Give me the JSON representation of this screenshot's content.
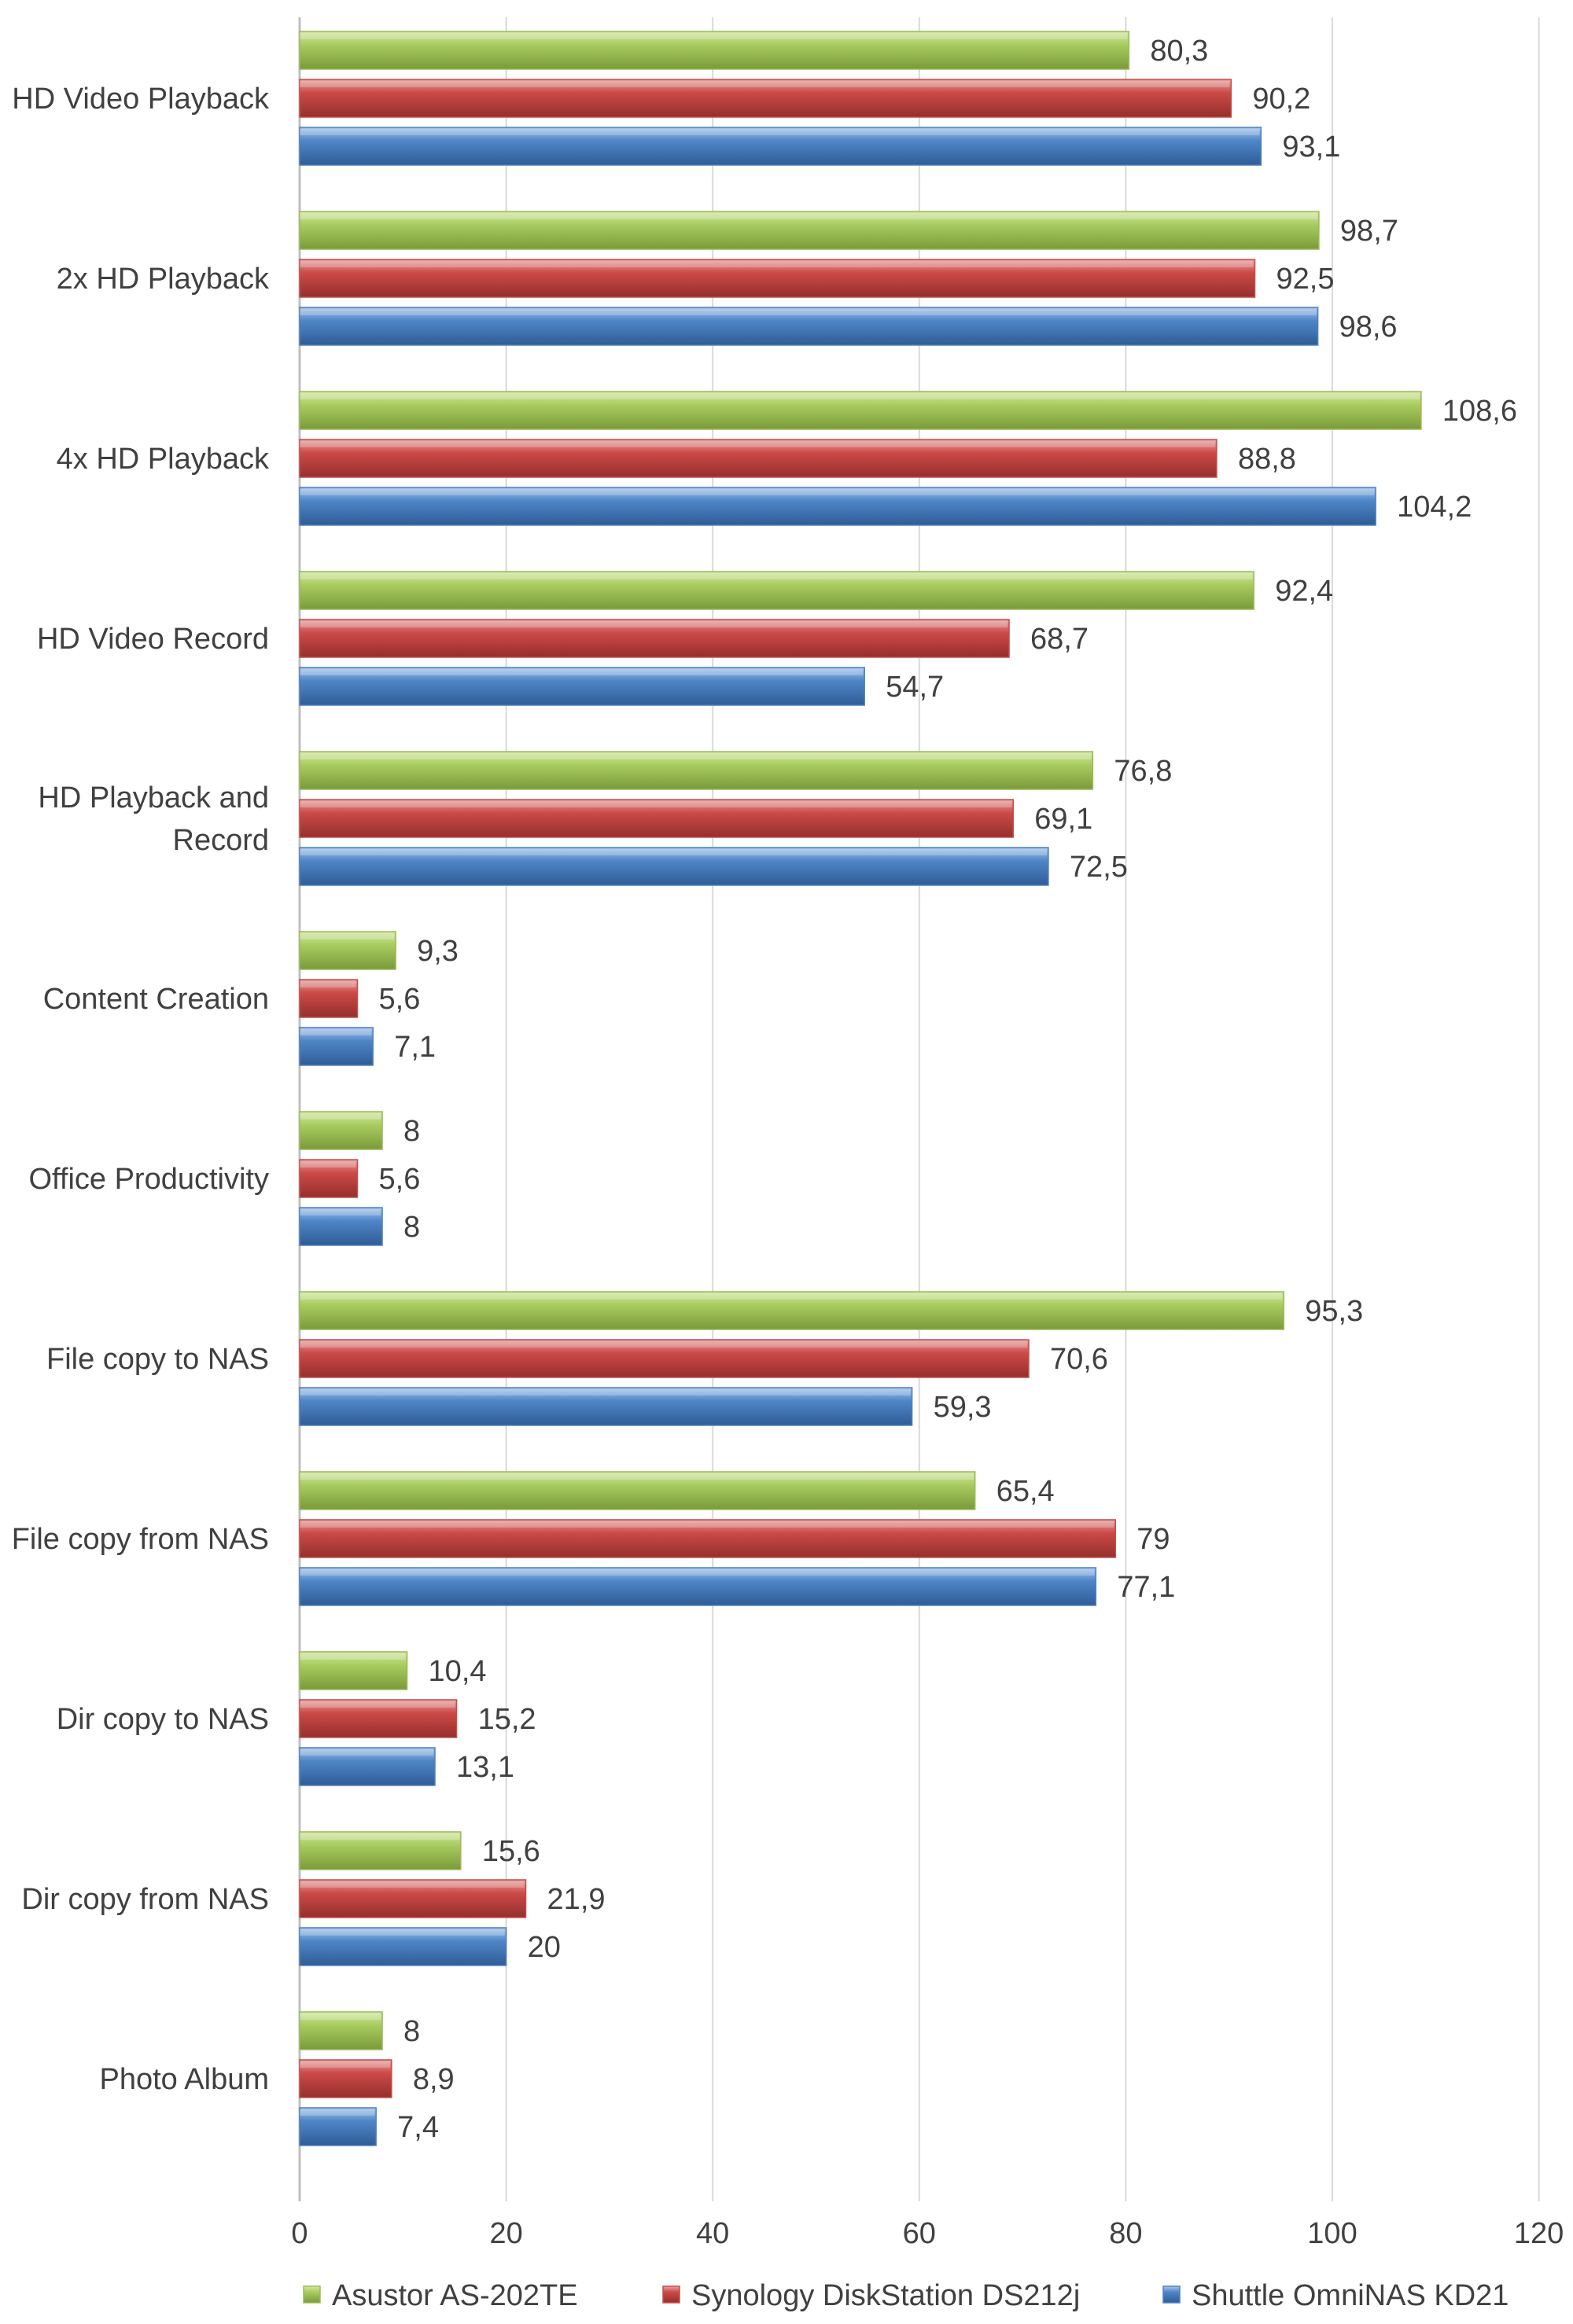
{
  "chart_data": {
    "type": "bar",
    "orientation": "horizontal",
    "title": "",
    "xlabel": "",
    "ylabel": "",
    "xlim": [
      0,
      120
    ],
    "x_ticks": [
      0,
      20,
      40,
      60,
      80,
      100,
      120
    ],
    "grid": "vertical",
    "legend_position": "bottom",
    "categories": [
      "HD Video Playback",
      "2x HD Playback",
      "4x HD Playback",
      "HD Video Record",
      "HD Playback and Record",
      "Content Creation",
      "Office Productivity",
      "File copy to NAS",
      "File copy from NAS",
      "Dir copy to NAS",
      "Dir copy from NAS",
      "Photo Album"
    ],
    "category_lines": [
      [
        "HD Video Playback"
      ],
      [
        "2x HD Playback"
      ],
      [
        "4x HD Playback"
      ],
      [
        "HD Video Record"
      ],
      [
        "HD Playback and",
        "Record"
      ],
      [
        "Content Creation"
      ],
      [
        "Office Productivity"
      ],
      [
        "File copy to NAS"
      ],
      [
        "File copy from NAS"
      ],
      [
        "Dir copy to NAS"
      ],
      [
        "Dir copy from NAS"
      ],
      [
        "Photo Album"
      ]
    ],
    "series": [
      {
        "name": "Asustor AS-202TE",
        "color": "#9BBB59",
        "values": [
          80.3,
          98.7,
          108.6,
          92.4,
          76.8,
          9.3,
          8,
          95.3,
          65.4,
          10.4,
          15.6,
          8
        ],
        "labels": [
          "80,3",
          "98,7",
          "108,6",
          "92,4",
          "76,8",
          "9,3",
          "8",
          "95,3",
          "65,4",
          "10,4",
          "15,6",
          "8"
        ]
      },
      {
        "name": "Synology DiskStation DS212j",
        "color": "#C0504D",
        "values": [
          90.2,
          92.5,
          88.8,
          68.7,
          69.1,
          5.6,
          5.6,
          70.6,
          79,
          15.2,
          21.9,
          8.9
        ],
        "labels": [
          "90,2",
          "92,5",
          "88,8",
          "68,7",
          "69,1",
          "5,6",
          "5,6",
          "70,6",
          "79",
          "15,2",
          "21,9",
          "8,9"
        ]
      },
      {
        "name": "Shuttle OmniNAS KD21",
        "color": "#4F81BD",
        "values": [
          93.1,
          98.6,
          104.2,
          54.7,
          72.5,
          7.1,
          8,
          59.3,
          77.1,
          13.1,
          20,
          7.4
        ],
        "labels": [
          "93,1",
          "98,6",
          "104,2",
          "54,7",
          "72,5",
          "7,1",
          "8",
          "59,3",
          "77,1",
          "13,1",
          "20",
          "7,4"
        ]
      }
    ]
  }
}
